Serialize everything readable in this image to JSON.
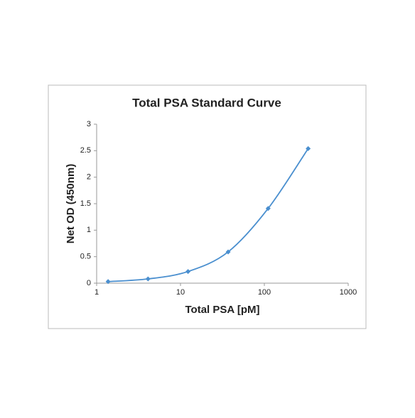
{
  "chart_data": {
    "type": "line",
    "title": "Total PSA Standard Curve",
    "x_label": "Total PSA [pM]",
    "y_label": "Net OD (450nm)",
    "xscale": "log",
    "smooth": true,
    "grid": false,
    "legend": false,
    "series": [
      {
        "name": "Net OD",
        "color": "#4a8fcf",
        "x": [
          1.37,
          4.1,
          12.3,
          37,
          111,
          333
        ],
        "values": [
          0.03,
          0.08,
          0.22,
          0.59,
          1.41,
          2.54
        ]
      }
    ],
    "xlim": [
      1,
      1000
    ],
    "xticks": [
      1,
      10,
      100,
      1000
    ],
    "ylim": [
      0,
      3
    ],
    "yticks": [
      0,
      0.5,
      1,
      1.5,
      2,
      2.5,
      3
    ]
  }
}
